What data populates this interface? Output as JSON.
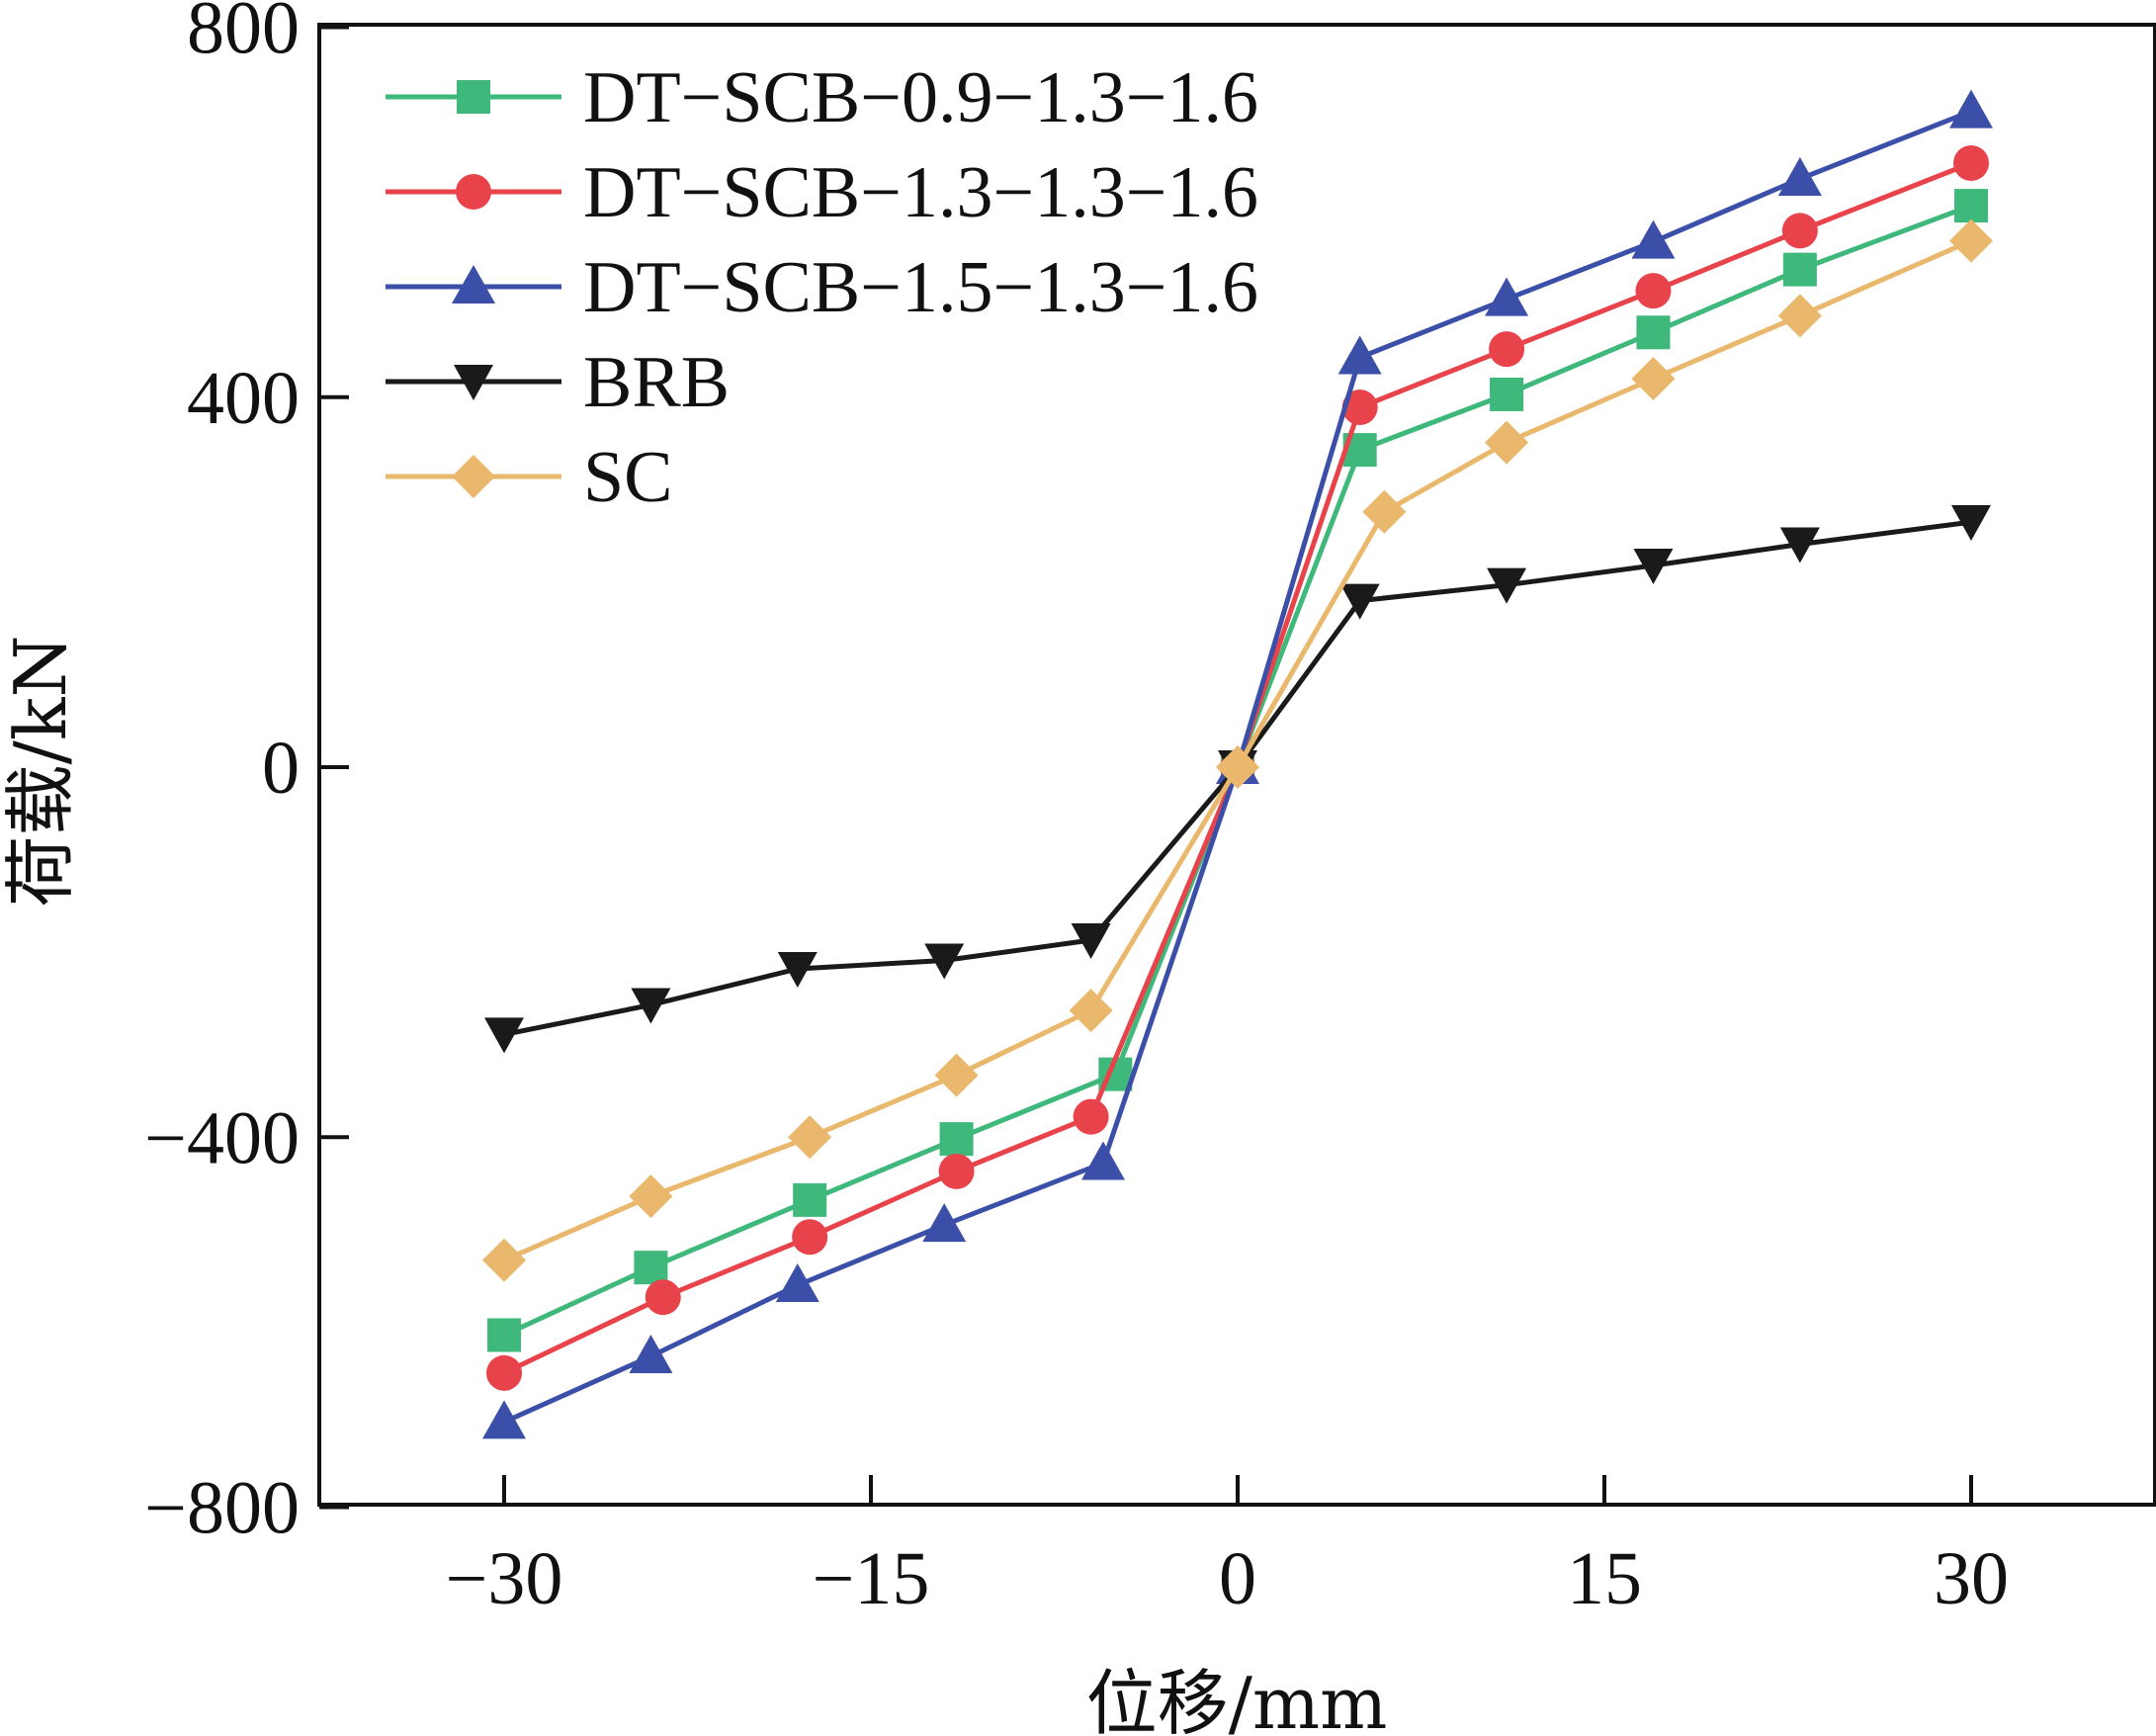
{
  "chart_data": {
    "type": "line",
    "xlabel": "位移/mm",
    "ylabel": "荷载/kN",
    "xlim": [
      -37.5,
      37.5
    ],
    "ylim": [
      -800,
      800
    ],
    "xticks": [
      -30,
      -15,
      0,
      15,
      30
    ],
    "yticks": [
      -800,
      -400,
      0,
      400,
      800
    ],
    "xtick_labels": [
      "−30",
      "−15",
      "0",
      "15",
      "30"
    ],
    "ytick_labels": [
      "−800",
      "−400",
      "0",
      "400",
      "800"
    ],
    "grid": false,
    "legend_position": "top-left",
    "series": [
      {
        "name": "DT−SCB−0.9−1.3−1.6",
        "color": "#3fb87c",
        "marker": "square",
        "points": [
          [
            -30,
            -614
          ],
          [
            -24,
            -541
          ],
          [
            -17.5,
            -468
          ],
          [
            -11.5,
            -402
          ],
          [
            -5,
            -332
          ],
          [
            0,
            0
          ],
          [
            5,
            343
          ],
          [
            11,
            403
          ],
          [
            17,
            470
          ],
          [
            23,
            538
          ],
          [
            30,
            607
          ]
        ]
      },
      {
        "name": "DT−SCB−1.3−1.3−1.6",
        "color": "#e8434b",
        "marker": "circle",
        "points": [
          [
            -30,
            -655
          ],
          [
            -23.5,
            -573
          ],
          [
            -17.5,
            -508
          ],
          [
            -11.5,
            -437
          ],
          [
            -6,
            -378
          ],
          [
            0,
            0
          ],
          [
            5,
            389
          ],
          [
            11,
            452
          ],
          [
            17,
            515
          ],
          [
            23,
            580
          ],
          [
            30,
            653
          ]
        ]
      },
      {
        "name": "DT−SCB−1.5−1.3−1.6",
        "color": "#3b4fa8",
        "marker": "triangle-up",
        "points": [
          [
            -30,
            -708
          ],
          [
            -24,
            -637
          ],
          [
            -18,
            -560
          ],
          [
            -12,
            -495
          ],
          [
            -5.5,
            -428
          ],
          [
            0,
            0
          ],
          [
            5,
            443
          ],
          [
            11,
            506
          ],
          [
            17,
            568
          ],
          [
            23,
            636
          ],
          [
            30,
            709
          ]
        ]
      },
      {
        "name": "BRB",
        "color": "#1a1a1a",
        "marker": "triangle-down",
        "points": [
          [
            -30,
            -289
          ],
          [
            -24,
            -257
          ],
          [
            -18,
            -218
          ],
          [
            -12,
            -209
          ],
          [
            -6,
            -187
          ],
          [
            0,
            0
          ],
          [
            5,
            180
          ],
          [
            11,
            197
          ],
          [
            17,
            218
          ],
          [
            23,
            241
          ],
          [
            30,
            265
          ]
        ]
      },
      {
        "name": "SC",
        "color": "#e9b86c",
        "marker": "diamond",
        "points": [
          [
            -30,
            -533
          ],
          [
            -24,
            -464
          ],
          [
            -17.5,
            -400
          ],
          [
            -11.5,
            -333
          ],
          [
            -6,
            -263
          ],
          [
            0,
            0
          ],
          [
            6,
            276
          ],
          [
            11,
            351
          ],
          [
            17,
            420
          ],
          [
            23,
            488
          ],
          [
            30,
            569
          ]
        ]
      }
    ]
  }
}
